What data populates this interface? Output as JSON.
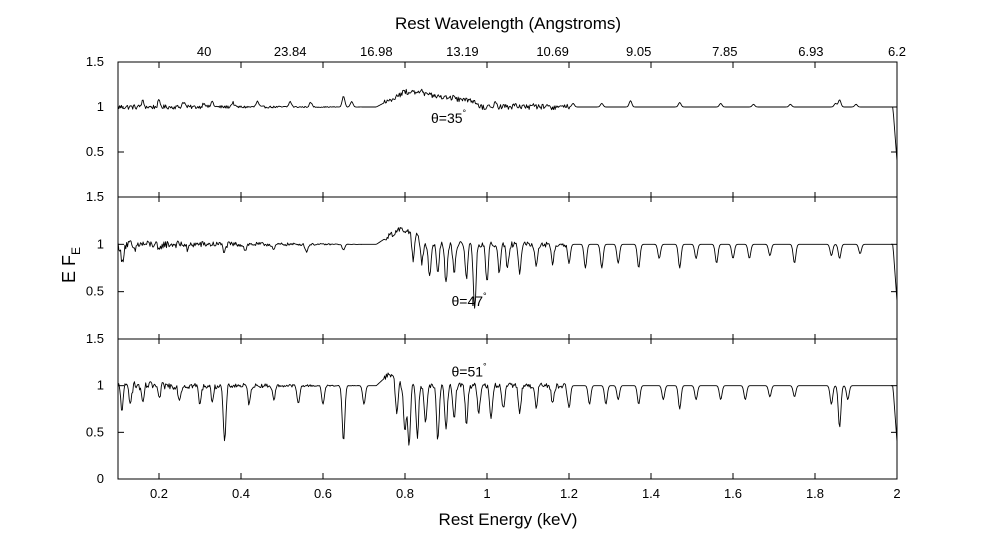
{
  "chart_data": {
    "type": "line",
    "xlabel": "Rest Energy (keV)",
    "xlim": [
      0.1,
      2.0
    ],
    "x_ticks": [
      0.2,
      0.4,
      0.6,
      0.8,
      1.0,
      1.2,
      1.4,
      1.6,
      1.8,
      2.0
    ],
    "x_tick_labels": [
      "0.2",
      "0.4",
      "0.6",
      "0.8",
      "1",
      "1.2",
      "1.4",
      "1.6",
      "1.8",
      "2"
    ],
    "top_axis": {
      "label": "Rest Wavelength (Angstroms)",
      "tick_energies_kev": [
        0.31,
        0.52,
        0.73,
        0.94,
        1.16,
        1.37,
        1.58,
        1.79,
        2.0
      ],
      "tick_labels": [
        "40",
        "23.84",
        "16.98",
        "13.19",
        "10.69",
        "9.05",
        "7.85",
        "6.93",
        "6.2"
      ]
    },
    "ylabel": "E F",
    "ylabel_subscript": "E",
    "ylim": [
      0,
      1.5
    ],
    "y_ticks": [
      0,
      0.5,
      1.0,
      1.5
    ],
    "y_tick_labels": [
      "0",
      "0.5",
      "1",
      "1.5"
    ],
    "panels": [
      {
        "name": "theta=35",
        "annotation_text": "θ=35",
        "annotation_degree": "°",
        "hump": {
          "start": 0.73,
          "peak": 0.8,
          "end": 0.98,
          "height": 0.17
        },
        "soft_noise_amp": 0.03,
        "lines": [
          [
            0.16,
            0.06
          ],
          [
            0.2,
            0.06
          ],
          [
            0.26,
            0.06
          ],
          [
            0.31,
            0.05
          ],
          [
            0.33,
            0.06
          ],
          [
            0.38,
            0.05
          ],
          [
            0.44,
            0.06
          ],
          [
            0.52,
            0.06
          ],
          [
            0.57,
            0.05
          ],
          [
            0.65,
            0.12
          ],
          [
            0.67,
            0.06
          ],
          [
            0.84,
            0.06
          ],
          [
            0.92,
            0.05
          ],
          [
            1.02,
            0.05
          ],
          [
            1.07,
            0.05
          ],
          [
            1.11,
            0.04
          ],
          [
            1.21,
            0.04
          ],
          [
            1.28,
            0.04
          ],
          [
            1.35,
            0.07
          ],
          [
            1.47,
            0.05
          ],
          [
            1.57,
            0.04
          ],
          [
            1.65,
            0.03
          ],
          [
            1.74,
            0.03
          ],
          [
            1.85,
            0.04
          ],
          [
            1.86,
            0.08
          ],
          [
            1.9,
            0.03
          ]
        ]
      },
      {
        "name": "theta=47",
        "annotation_text": "θ=47",
        "annotation_degree": "°",
        "hump": {
          "start": 0.73,
          "peak": 0.79,
          "end": 0.84,
          "height": 0.17
        },
        "soft_noise_amp": 0.05,
        "lines": [
          [
            0.11,
            -0.2
          ],
          [
            0.14,
            -0.08
          ],
          [
            0.2,
            -0.08
          ],
          [
            0.27,
            -0.06
          ],
          [
            0.36,
            -0.08
          ],
          [
            0.41,
            -0.06
          ],
          [
            0.48,
            -0.06
          ],
          [
            0.56,
            -0.08
          ],
          [
            0.65,
            -0.06
          ],
          [
            0.82,
            -0.3
          ],
          [
            0.84,
            -0.25
          ],
          [
            0.86,
            -0.35
          ],
          [
            0.88,
            -0.3
          ],
          [
            0.9,
            -0.4
          ],
          [
            0.92,
            -0.3
          ],
          [
            0.95,
            -0.35
          ],
          [
            0.97,
            -0.7
          ],
          [
            1.0,
            -0.4
          ],
          [
            1.03,
            -0.3
          ],
          [
            1.05,
            -0.25
          ],
          [
            1.08,
            -0.3
          ],
          [
            1.12,
            -0.25
          ],
          [
            1.16,
            -0.2
          ],
          [
            1.2,
            -0.2
          ],
          [
            1.24,
            -0.25
          ],
          [
            1.28,
            -0.25
          ],
          [
            1.32,
            -0.2
          ],
          [
            1.37,
            -0.25
          ],
          [
            1.42,
            -0.15
          ],
          [
            1.47,
            -0.25
          ],
          [
            1.51,
            -0.15
          ],
          [
            1.56,
            -0.2
          ],
          [
            1.6,
            -0.15
          ],
          [
            1.64,
            -0.15
          ],
          [
            1.69,
            -0.12
          ],
          [
            1.75,
            -0.2
          ],
          [
            1.84,
            -0.12
          ],
          [
            1.86,
            -0.15
          ],
          [
            1.91,
            -0.1
          ]
        ]
      },
      {
        "name": "theta=51",
        "annotation_text": "θ=51",
        "annotation_degree": "°",
        "hump": {
          "start": 0.73,
          "peak": 0.76,
          "end": 0.79,
          "height": 0.12
        },
        "soft_noise_amp": 0.05,
        "lines": [
          [
            0.11,
            -0.25
          ],
          [
            0.13,
            -0.15
          ],
          [
            0.16,
            -0.2
          ],
          [
            0.2,
            -0.15
          ],
          [
            0.25,
            -0.15
          ],
          [
            0.3,
            -0.2
          ],
          [
            0.33,
            -0.15
          ],
          [
            0.36,
            -0.62
          ],
          [
            0.42,
            -0.2
          ],
          [
            0.48,
            -0.15
          ],
          [
            0.54,
            -0.2
          ],
          [
            0.6,
            -0.2
          ],
          [
            0.65,
            -0.6
          ],
          [
            0.7,
            -0.2
          ],
          [
            0.78,
            -0.4
          ],
          [
            0.8,
            -0.5
          ],
          [
            0.81,
            -0.65
          ],
          [
            0.83,
            -0.55
          ],
          [
            0.85,
            -0.4
          ],
          [
            0.88,
            -0.6
          ],
          [
            0.9,
            -0.45
          ],
          [
            0.92,
            -0.35
          ],
          [
            0.95,
            -0.4
          ],
          [
            0.98,
            -0.3
          ],
          [
            1.01,
            -0.35
          ],
          [
            1.04,
            -0.25
          ],
          [
            1.08,
            -0.3
          ],
          [
            1.12,
            -0.25
          ],
          [
            1.16,
            -0.2
          ],
          [
            1.2,
            -0.25
          ],
          [
            1.25,
            -0.2
          ],
          [
            1.29,
            -0.2
          ],
          [
            1.32,
            -0.15
          ],
          [
            1.37,
            -0.2
          ],
          [
            1.43,
            -0.15
          ],
          [
            1.47,
            -0.25
          ],
          [
            1.51,
            -0.15
          ],
          [
            1.57,
            -0.15
          ],
          [
            1.63,
            -0.15
          ],
          [
            1.69,
            -0.12
          ],
          [
            1.75,
            -0.12
          ],
          [
            1.84,
            -0.2
          ],
          [
            1.86,
            -0.45
          ],
          [
            1.88,
            -0.15
          ]
        ]
      }
    ]
  }
}
